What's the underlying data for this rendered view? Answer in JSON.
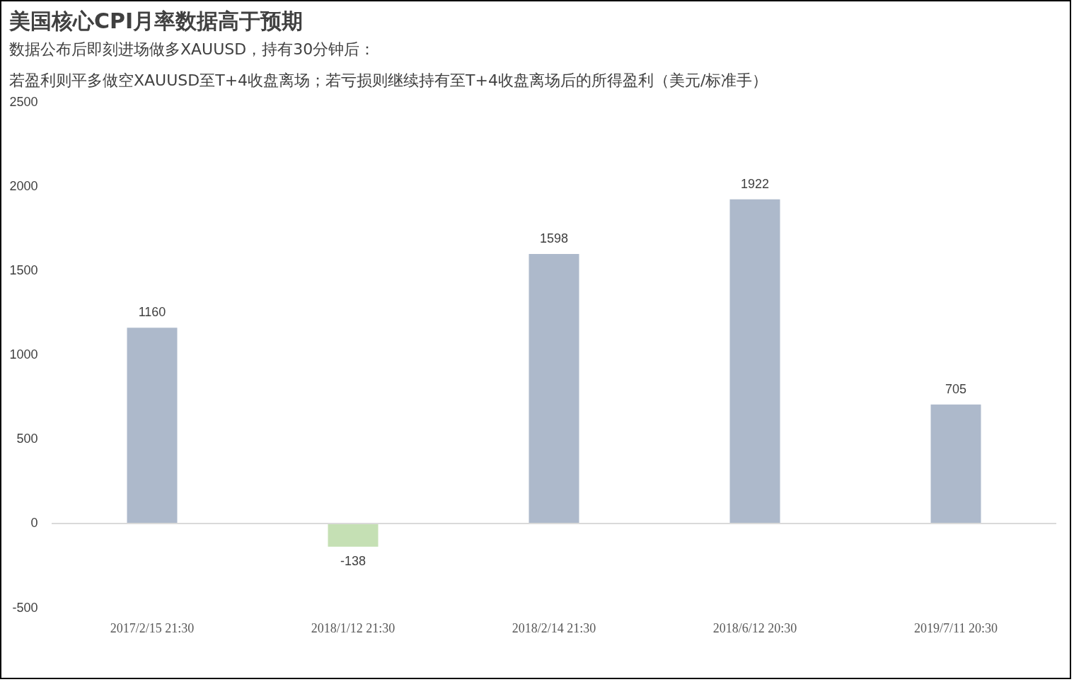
{
  "chart_data": {
    "type": "bar",
    "title": "美国核心CPI月率数据高于预期",
    "subtitle": [
      "数据公布后即刻进场做多XAUUSD，持有30分钟后：",
      "若盈利则平多做空XAUUSD至T+4收盘离场；若亏损则继续持有至T+4收盘离场后的所得盈利（美元/标准手）"
    ],
    "categories": [
      "2017/2/15 21:30",
      "2018/1/12 21:30",
      "2018/2/14 21:30",
      "2018/6/12 20:30",
      "2019/7/11 20:30"
    ],
    "values": [
      1160,
      -138,
      1598,
      1922,
      705
    ],
    "colors": [
      "#adb9cb",
      "#c5e0b4",
      "#adb9cb",
      "#adb9cb",
      "#adb9cb"
    ],
    "ylim": [
      -500,
      2500
    ],
    "yticks": [
      -500,
      0,
      500,
      1000,
      1500,
      2000,
      2500
    ],
    "ref_lines": [
      {
        "axis": "y",
        "value": 0,
        "color": "#d9d9d9"
      }
    ],
    "grid": false,
    "legend": false,
    "data_labels": true
  }
}
